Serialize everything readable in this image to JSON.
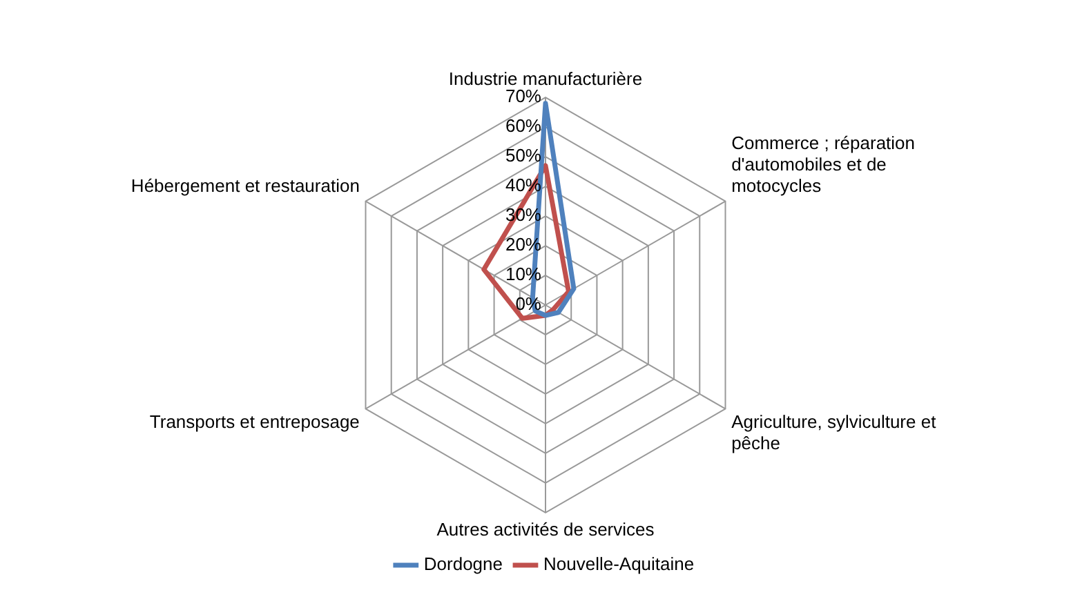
{
  "chart_data": {
    "type": "radar",
    "categories": [
      "Industrie manufacturière",
      "Commerce ; réparation d'automobiles et de motocycles",
      "Agriculture, sylviculture et pêche",
      "Autres activités de services",
      "Transports et entreposage",
      "Hébergement et restauration"
    ],
    "series": [
      {
        "name": "Dordogne",
        "color": "#4f81bd",
        "values": [
          68,
          11,
          5,
          3.5,
          4,
          5
        ]
      },
      {
        "name": "Nouvelle-Aquitaine",
        "color": "#c0504d",
        "values": [
          47,
          9,
          3,
          3.5,
          9,
          24
        ]
      }
    ],
    "ylim": [
      0,
      70
    ],
    "yticks": [
      {
        "value": 0,
        "label": "0%"
      },
      {
        "value": 10,
        "label": "10%"
      },
      {
        "value": 20,
        "label": "20%"
      },
      {
        "value": 30,
        "label": "30%"
      },
      {
        "value": 40,
        "label": "40%"
      },
      {
        "value": 50,
        "label": "50%"
      },
      {
        "value": 60,
        "label": "60%"
      },
      {
        "value": 70,
        "label": "70%"
      }
    ],
    "grid": true,
    "legend": "bottom",
    "marker": "none"
  }
}
